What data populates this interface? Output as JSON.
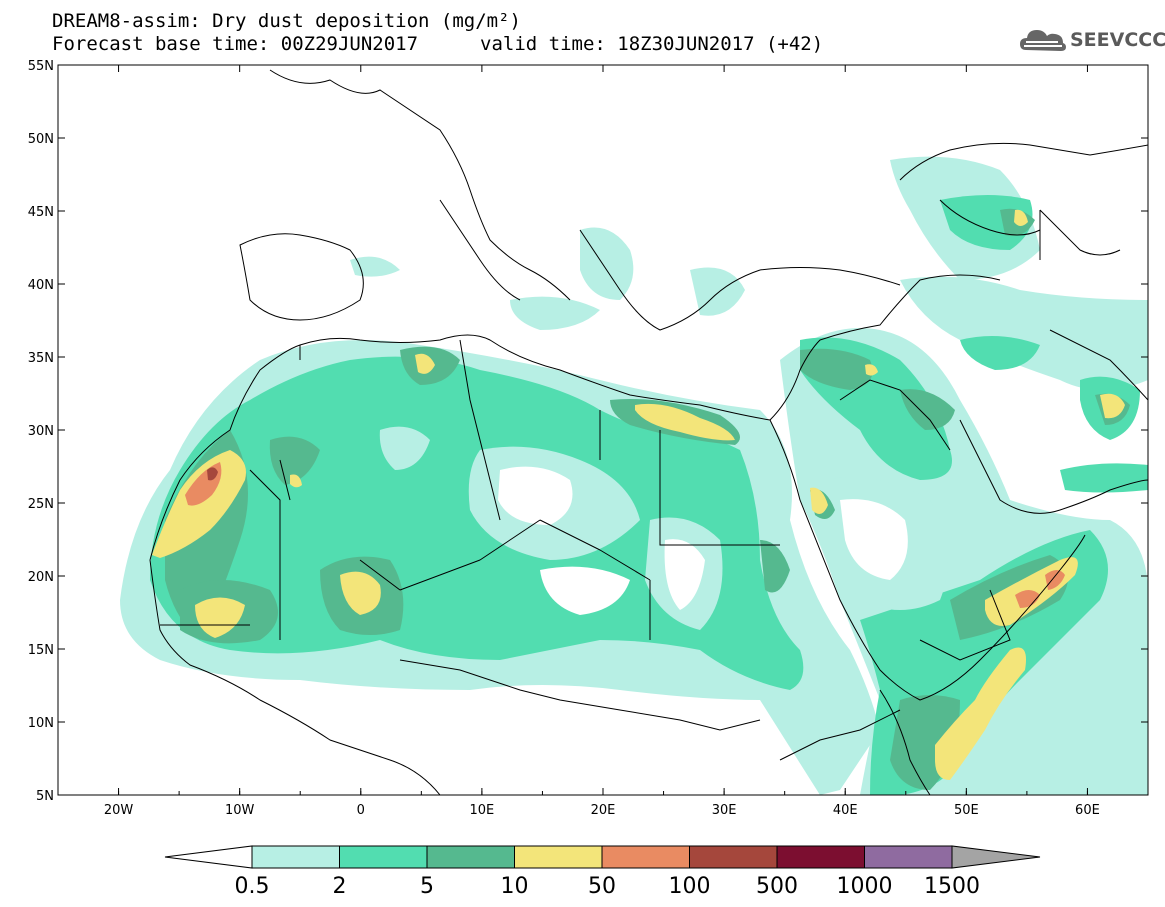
{
  "header": {
    "title": "DREAM8-assim: Dry dust deposition (mg/m²)",
    "base_time": "Forecast base time: 00Z29JUN2017",
    "valid_time": "valid time: 18Z30JUN2017 (+42)"
  },
  "logo": {
    "text": "SEEVCCC",
    "icon": "cloud-icon"
  },
  "map": {
    "lat_labels": [
      "55N",
      "50N",
      "45N",
      "40N",
      "35N",
      "30N",
      "25N",
      "20N",
      "15N",
      "10N",
      "5N"
    ],
    "lon_labels": [
      "20W",
      "10W",
      "0",
      "10E",
      "20E",
      "30E",
      "40E",
      "50E",
      "60E"
    ],
    "lon_range": [
      -25,
      65
    ],
    "lat_range": [
      5,
      55
    ]
  },
  "colorbar": {
    "labels": [
      "0.5",
      "2",
      "5",
      "10",
      "50",
      "100",
      "500",
      "1000",
      "1500"
    ],
    "colors": [
      "#b7efe4",
      "#52ddb0",
      "#55b98f",
      "#f3e57a",
      "#e98b62",
      "#a5473c",
      "#7c0e30",
      "#8f6ba0"
    ],
    "low_color": "#ffffff",
    "high_color": "#a4a4a4"
  }
}
